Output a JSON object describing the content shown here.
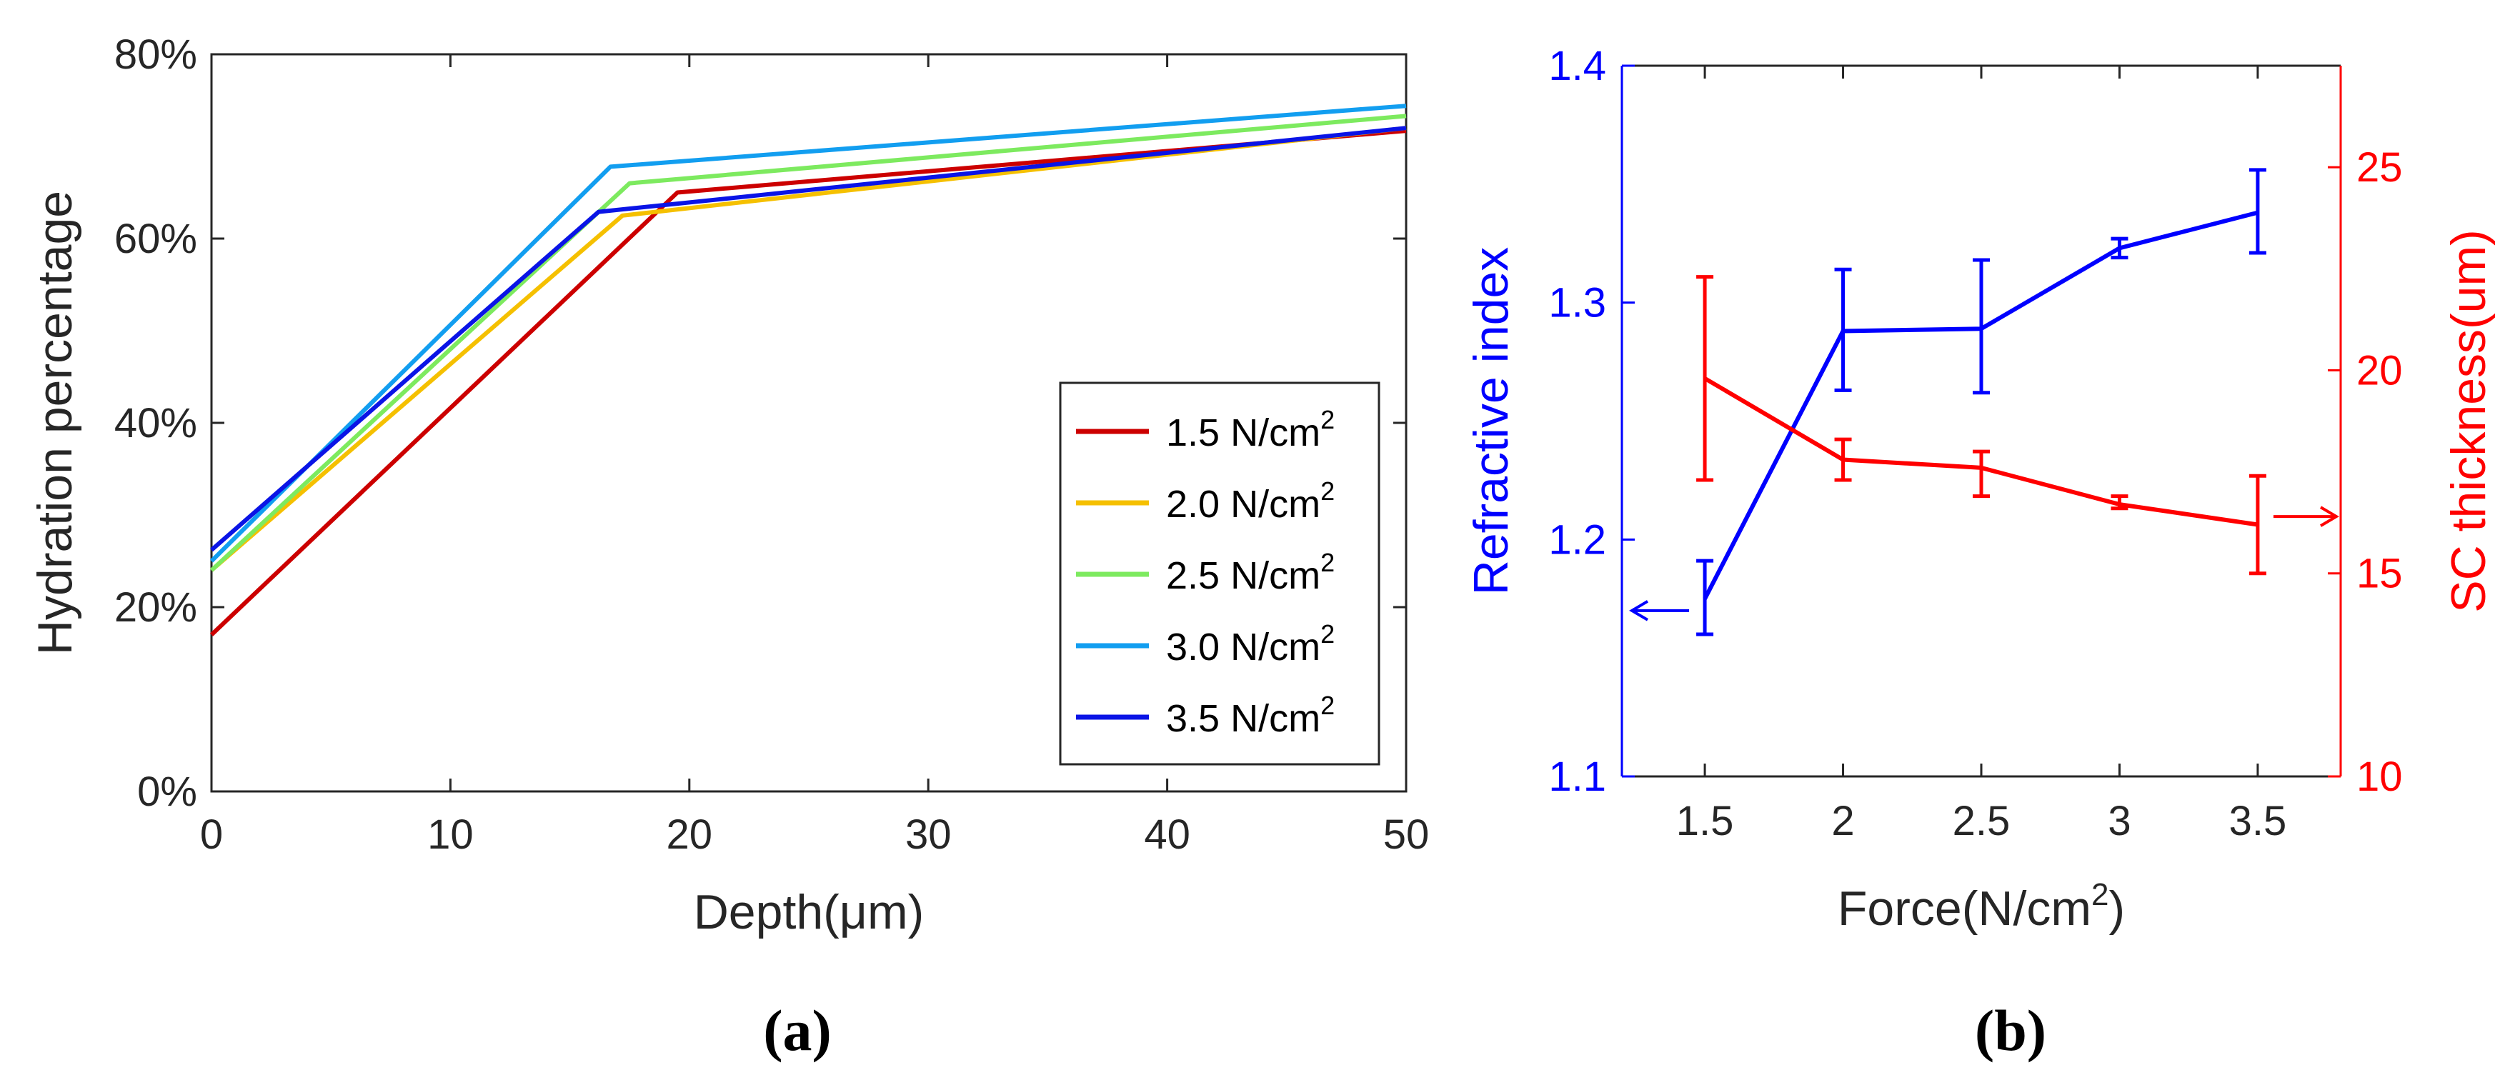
{
  "colors": {
    "axis": "#262626",
    "left_axis": "#0000ff",
    "right_axis": "#ff0000",
    "series_1_5": "#cc0000",
    "series_2_0": "#f5c000",
    "series_2_5": "#7dea5f",
    "series_3_0": "#129ef0",
    "series_3_5": "#0a14e6"
  },
  "labels": {
    "panel_a": "(a)",
    "panel_b": "(b)"
  },
  "chart_data": [
    {
      "type": "line",
      "xlabel": "Depth(μm)",
      "ylabel": "Hydration percentage",
      "xlim": [
        0,
        50
      ],
      "ylim": [
        0,
        80
      ],
      "x_ticks": [
        "0",
        "10",
        "20",
        "30",
        "40",
        "50"
      ],
      "y_ticks": [
        "0%",
        "20%",
        "40%",
        "60%",
        "80%"
      ],
      "grid": false,
      "legend": {
        "placement": "bottom-right",
        "unit_base": "N/cm",
        "unit_sup": "2"
      },
      "series": [
        {
          "name": "1.5",
          "color_key": "series_1_5",
          "x": [
            0,
            19.5,
            50
          ],
          "y": [
            17,
            65,
            71.7
          ]
        },
        {
          "name": "2.0",
          "color_key": "series_2_0",
          "x": [
            0,
            17.2,
            50
          ],
          "y": [
            24,
            62.5,
            72
          ]
        },
        {
          "name": "2.5",
          "color_key": "series_2_5",
          "x": [
            0,
            17.5,
            50
          ],
          "y": [
            24,
            66,
            73.3
          ]
        },
        {
          "name": "3.0",
          "color_key": "series_3_0",
          "x": [
            0,
            16.7,
            50
          ],
          "y": [
            25,
            67.8,
            74.4
          ]
        },
        {
          "name": "3.5",
          "color_key": "series_3_5",
          "x": [
            0,
            16.2,
            50
          ],
          "y": [
            26.2,
            62.9,
            72
          ]
        }
      ]
    },
    {
      "type": "line",
      "xlabel_base": "Force(N/cm",
      "xlabel_sup": "2",
      "xlabel_tail": ")",
      "ylabel_left": "Refractive index",
      "ylabel_right": "SC thickness(um)",
      "xlim": [
        1.2,
        3.8
      ],
      "ylim_left": [
        1.1,
        1.4
      ],
      "ylim_right": [
        10,
        27.5
      ],
      "x_ticks": [
        "1.5",
        "2",
        "2.5",
        "3",
        "3.5"
      ],
      "y_ticks_left": [
        "1.1",
        "1.2",
        "1.3",
        "1.4"
      ],
      "y_ticks_right": [
        "10",
        "15",
        "20",
        "25"
      ],
      "grid": false,
      "series": [
        {
          "axis": "left",
          "color_key": "left_axis",
          "x": [
            1.5,
            2,
            2.5,
            3,
            3.5
          ],
          "y": [
            1.175,
            1.288,
            1.289,
            1.323,
            1.338
          ],
          "err_low": [
            1.16,
            1.263,
            1.262,
            1.319,
            1.321
          ],
          "err_high": [
            1.191,
            1.314,
            1.318,
            1.327,
            1.356
          ]
        },
        {
          "axis": "right",
          "color_key": "right_axis",
          "x": [
            1.5,
            2,
            2.5,
            3,
            3.5
          ],
          "y": [
            19.8,
            17.8,
            17.6,
            16.7,
            16.2
          ],
          "err_low": [
            17.3,
            17.3,
            16.9,
            16.6,
            15.0
          ],
          "err_high": [
            22.3,
            18.3,
            18.0,
            16.9,
            17.4
          ]
        }
      ],
      "annotations": [
        {
          "type": "arrow-left",
          "color_key": "left_axis",
          "x_from": 1.5,
          "x_to": 1.2,
          "y_left": 1.17
        },
        {
          "type": "arrow-right",
          "color_key": "right_axis",
          "x_from": 3.5,
          "x_to": 3.8,
          "y_right": 16.4
        }
      ]
    }
  ]
}
